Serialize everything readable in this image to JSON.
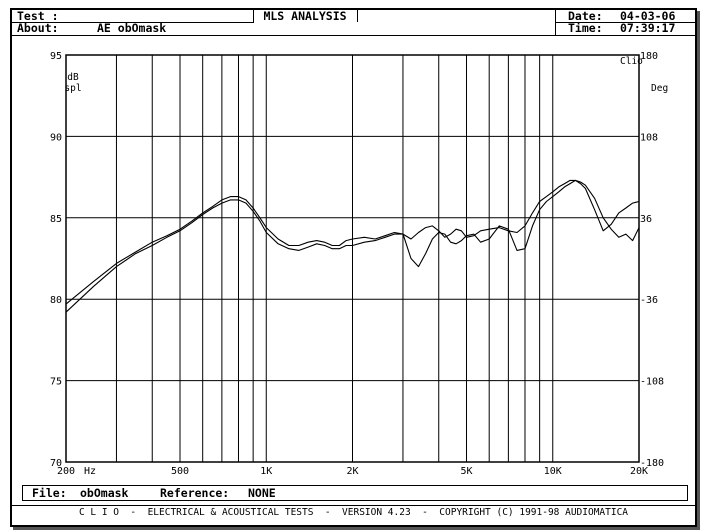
{
  "header": {
    "test_label": "Test :",
    "about_label": "About:",
    "about_value": "AE obOmask",
    "title": "MLS ANALYSIS",
    "date_label": "Date:",
    "date_value": "04-03-06",
    "time_label": "Time:",
    "time_value": "07:39:17"
  },
  "file_bar": {
    "file_label": "File:",
    "file_value": "obOmask",
    "reference_label": "Reference:",
    "reference_value": "NONE"
  },
  "footer": "C L I O  -  ELECTRICAL & ACOUSTICAL TESTS  -  VERSION 4.23  -  COPYRIGHT (C) 1991-98 AUDIOMATICA",
  "chart_data": {
    "type": "line",
    "xscale": "log",
    "xlim": [
      200,
      20000
    ],
    "ylim": [
      70,
      95
    ],
    "y2lim": [
      -180,
      180
    ],
    "ylabel": "dB spl",
    "y2label": "Deg",
    "corner_label": "Clio",
    "x_unit_label": "Hz",
    "grid": true,
    "x_ticks": [
      {
        "value": 200,
        "label": "200"
      },
      {
        "value": 500,
        "label": "500"
      },
      {
        "value": 1000,
        "label": "1K"
      },
      {
        "value": 2000,
        "label": "2K"
      },
      {
        "value": 5000,
        "label": "5K"
      },
      {
        "value": 10000,
        "label": "10K"
      },
      {
        "value": 20000,
        "label": "20K"
      }
    ],
    "x_gridlines": [
      300,
      400,
      500,
      600,
      700,
      800,
      900,
      1000,
      2000,
      3000,
      4000,
      5000,
      6000,
      7000,
      8000,
      9000,
      10000
    ],
    "y_ticks": [
      {
        "value": 95,
        "label": "95"
      },
      {
        "value": 90,
        "label": "90"
      },
      {
        "value": 85,
        "label": "85"
      },
      {
        "value": 80,
        "label": "80"
      },
      {
        "value": 75,
        "label": "75"
      },
      {
        "value": 70,
        "label": "70"
      }
    ],
    "y2_ticks": [
      {
        "value": 180,
        "label": "180"
      },
      {
        "value": 108,
        "label": "108"
      },
      {
        "value": 36,
        "label": "36"
      },
      {
        "value": -36,
        "label": "-36"
      },
      {
        "value": -108,
        "label": "-108"
      },
      {
        "value": -180,
        "label": "-180"
      }
    ],
    "series": [
      {
        "color": "#000000",
        "x": [
          200,
          250,
          300,
          350,
          400,
          450,
          500,
          550,
          600,
          650,
          700,
          750,
          800,
          850,
          900,
          950,
          1000,
          1100,
          1200,
          1300,
          1400,
          1500,
          1600,
          1700,
          1800,
          1900,
          2000,
          2200,
          2400,
          2600,
          2800,
          3000,
          3200,
          3400,
          3600,
          3800,
          4000,
          4200,
          4400,
          4600,
          4800,
          5000,
          5300,
          5600,
          6000,
          6500,
          7000,
          7500,
          8000,
          8500,
          9000,
          9500,
          10000,
          10500,
          11000,
          11500,
          12000,
          12500,
          13000,
          14000,
          15000,
          16000,
          17000,
          18000,
          19000,
          20000
        ],
        "y": [
          79.2,
          80.8,
          82.0,
          82.8,
          83.3,
          83.8,
          84.2,
          84.7,
          85.2,
          85.6,
          85.9,
          86.1,
          86.1,
          85.9,
          85.4,
          84.8,
          84.1,
          83.4,
          83.1,
          83.0,
          83.2,
          83.4,
          83.3,
          83.1,
          83.1,
          83.3,
          83.3,
          83.5,
          83.6,
          83.8,
          84.0,
          84.0,
          83.7,
          84.1,
          84.4,
          84.5,
          84.2,
          83.8,
          84.0,
          84.3,
          84.2,
          83.8,
          83.9,
          84.2,
          84.3,
          84.4,
          84.2,
          84.1,
          84.5,
          85.3,
          86.0,
          86.3,
          86.6,
          86.9,
          87.1,
          87.3,
          87.3,
          87.1,
          86.8,
          85.5,
          84.2,
          84.6,
          85.3,
          85.6,
          85.9,
          86.0
        ]
      },
      {
        "color": "#000000",
        "x": [
          200,
          250,
          300,
          350,
          400,
          450,
          500,
          550,
          600,
          650,
          700,
          750,
          800,
          850,
          900,
          950,
          1000,
          1100,
          1200,
          1300,
          1400,
          1500,
          1600,
          1700,
          1800,
          1900,
          2000,
          2200,
          2400,
          2600,
          2800,
          3000,
          3200,
          3400,
          3600,
          3800,
          4000,
          4200,
          4400,
          4600,
          4800,
          5000,
          5300,
          5600,
          6000,
          6500,
          7000,
          7500,
          8000,
          8500,
          9000,
          9500,
          10000,
          10500,
          11000,
          11500,
          12000,
          12500,
          13000,
          14000,
          15000,
          16000,
          17000,
          18000,
          19000,
          20000
        ],
        "y": [
          79.7,
          81.1,
          82.2,
          82.9,
          83.5,
          83.9,
          84.3,
          84.8,
          85.3,
          85.7,
          86.1,
          86.3,
          86.3,
          86.1,
          85.6,
          85.0,
          84.4,
          83.7,
          83.3,
          83.3,
          83.5,
          83.6,
          83.5,
          83.3,
          83.3,
          83.6,
          83.7,
          83.8,
          83.7,
          83.9,
          84.1,
          84.0,
          82.5,
          82.0,
          82.8,
          83.7,
          84.1,
          84.0,
          83.5,
          83.4,
          83.6,
          83.9,
          84.0,
          83.5,
          83.7,
          84.5,
          84.3,
          83.0,
          83.1,
          84.5,
          85.5,
          86.0,
          86.3,
          86.6,
          86.9,
          87.1,
          87.3,
          87.2,
          87.0,
          86.2,
          85.0,
          84.3,
          83.8,
          84.0,
          83.6,
          84.4
        ]
      }
    ]
  }
}
